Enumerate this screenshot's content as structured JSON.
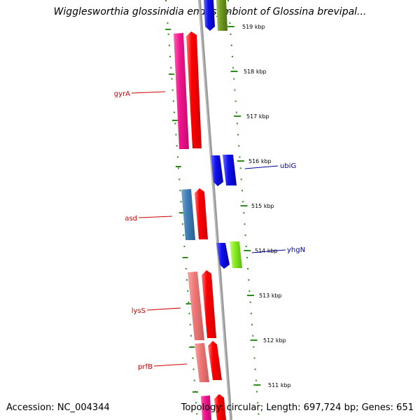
{
  "header": {
    "title": "Wigglesworthia glossinidia endosymbiont of Glossina brevipal..."
  },
  "footer": {
    "accession": "Accession: NC_004344",
    "summary": "Topology: circular; Length: 697,724 bp; Genes: 651"
  },
  "map": {
    "tick_labels": [
      "519 kbp",
      "518 kbp",
      "517 kbp",
      "516 kbp",
      "515 kbp",
      "514 kbp",
      "513 kbp",
      "512 kbp",
      "511 kbp"
    ],
    "gene_labels": [
      {
        "name": "gyrA",
        "color": "#cc0000"
      },
      {
        "name": "asd",
        "color": "#cc0000"
      },
      {
        "name": "lysS",
        "color": "#cc0000"
      },
      {
        "name": "prfB",
        "color": "#cc0000"
      },
      {
        "name": "ubiG",
        "color": "#000099"
      },
      {
        "name": "yhgN",
        "color": "#000099"
      }
    ],
    "colors": {
      "backbone": "#8c8c8c",
      "ticks": "#2e8b1e",
      "red": "#ee0000",
      "pink": "#f0168c",
      "steelblue": "#3f7fb6",
      "salmon": "#f07c7c",
      "blue": "#1010ee",
      "lime": "#88ee22",
      "olive": "#6e9a20"
    }
  }
}
